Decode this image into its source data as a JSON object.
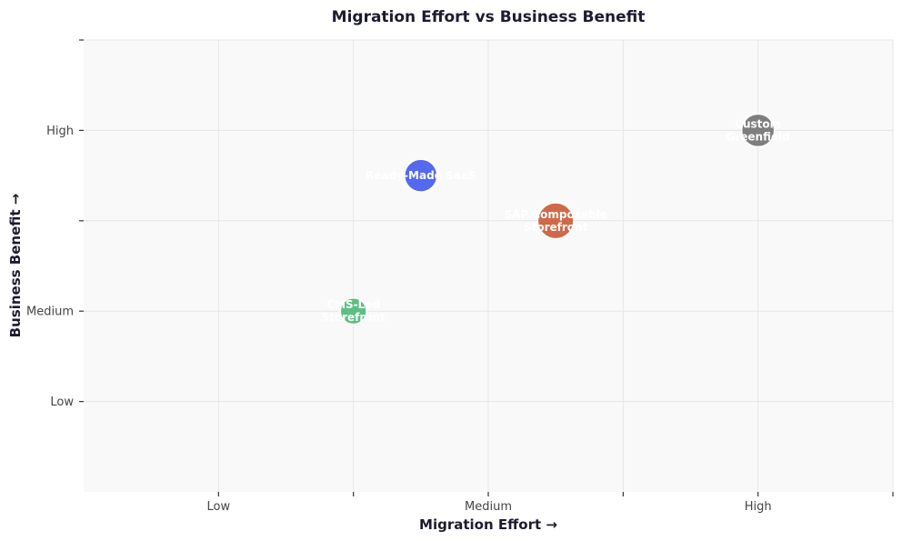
{
  "chart_data": {
    "type": "scatter",
    "title": "Migration Effort vs Business Benefit",
    "xlabel": "Migration Effort  →",
    "ylabel": "Business Benefit  →",
    "xlim": [
      0.5,
      3.5
    ],
    "ylim": [
      0.5,
      3.0
    ],
    "x_ticks": [
      1,
      1.5,
      2,
      2.5,
      3,
      3.5
    ],
    "x_tick_labels": [
      "Low",
      "",
      "Medium",
      "",
      "High",
      ""
    ],
    "y_ticks": [
      1,
      1.5,
      2,
      2.5,
      3
    ],
    "y_tick_labels": [
      "Low",
      "Medium",
      "",
      "High",
      ""
    ],
    "grid": true,
    "points": [
      {
        "label_lines": [
          "Ready-Made SaaS"
        ],
        "x": 1.75,
        "y": 2.25,
        "size": 1.0,
        "color": "#5468f0"
      },
      {
        "label_lines": [
          "CMS-Led",
          "Storefront"
        ],
        "x": 1.5,
        "y": 1.5,
        "size": 0.8,
        "color": "#5cbf82"
      },
      {
        "label_lines": [
          "SAP Composable",
          "Storefront"
        ],
        "x": 2.25,
        "y": 2.0,
        "size": 1.1,
        "color": "#d0694a"
      },
      {
        "label_lines": [
          "Custom",
          "Greenfield"
        ],
        "x": 3.0,
        "y": 2.5,
        "size": 1.0,
        "color": "#7e7e7e"
      }
    ]
  }
}
